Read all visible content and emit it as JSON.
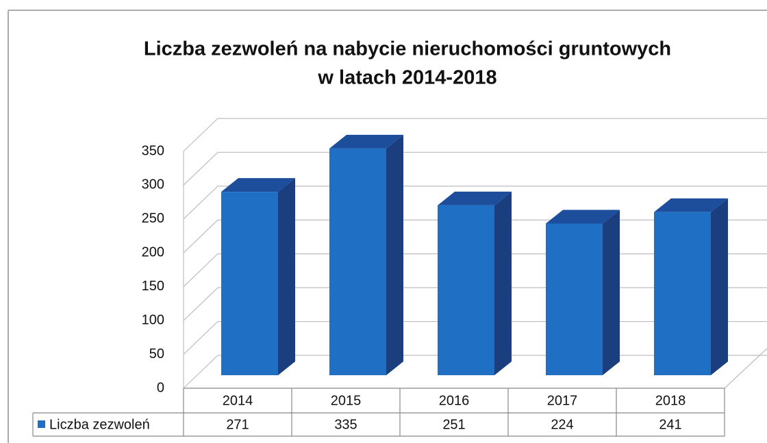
{
  "chart_data": {
    "type": "bar3d",
    "title": [
      "Liczba zezwoleń na nabycie nieruchomości gruntowych",
      "w latach 2014-2018"
    ],
    "categories": [
      "2014",
      "2015",
      "2016",
      "2017",
      "2018"
    ],
    "series": [
      {
        "name": "Liczba zezwoleń",
        "color": "#1f6fc4",
        "values": [
          271,
          335,
          251,
          224,
          241
        ]
      }
    ],
    "ylim": [
      0,
      350
    ],
    "yticks": [
      0,
      50,
      100,
      150,
      200,
      250,
      300,
      350
    ],
    "grid": true,
    "legend": "bottom-left"
  }
}
